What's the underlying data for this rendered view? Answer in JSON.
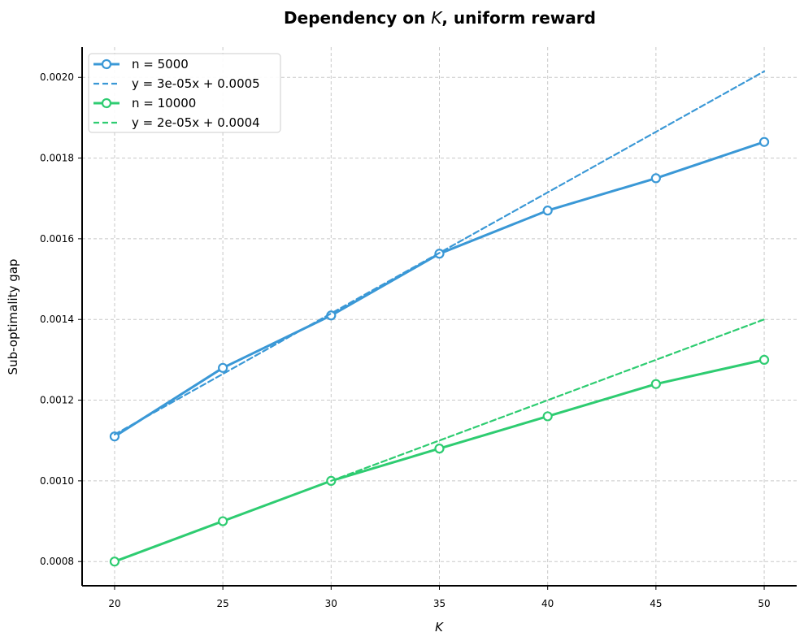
{
  "chart_data": {
    "type": "line",
    "title_prefix": "Dependency on ",
    "title_var": "K",
    "title_suffix": ", uniform reward",
    "xlabel": "K",
    "ylabel": "Sub-optimality gap",
    "x": [
      20,
      25,
      30,
      35,
      40,
      45,
      50
    ],
    "xlim": [
      18.5,
      51.5
    ],
    "ylim": [
      0.00074,
      0.002075
    ],
    "xticks": [
      20,
      25,
      30,
      35,
      40,
      45,
      50
    ],
    "yticks": [
      0.0008,
      0.001,
      0.0012,
      0.0014,
      0.0016,
      0.0018,
      0.002
    ],
    "ytick_labels": [
      "0.0008",
      "0.0010",
      "0.0012",
      "0.0014",
      "0.0016",
      "0.0018",
      "0.0020"
    ],
    "grid": true,
    "legend_position": "top-left",
    "series": [
      {
        "name": "n = 5000",
        "color": "#3a98d6",
        "style": "solid",
        "marker": "open-circle",
        "values": [
          0.00111,
          0.00128,
          0.00141,
          0.001563,
          0.00167,
          0.00175,
          0.00184
        ]
      },
      {
        "name": "y = 3e-05x + 0.0005",
        "color": "#3a98d6",
        "style": "dashed",
        "marker": "none",
        "values": [
          0.001115,
          0.001265,
          0.001415,
          0.001565,
          0.001715,
          0.001865,
          0.002015
        ]
      },
      {
        "name": "n = 10000",
        "color": "#2ecc71",
        "style": "solid",
        "marker": "open-circle",
        "values": [
          0.0008,
          0.0009,
          0.001,
          0.00108,
          0.00116,
          0.00124,
          0.0013
        ]
      },
      {
        "name": "y = 2e-05x + 0.0004",
        "color": "#2ecc71",
        "style": "dashed",
        "marker": "none",
        "values": [
          null,
          null,
          0.001,
          0.0011,
          0.0012,
          0.0013,
          0.0014
        ]
      }
    ]
  }
}
